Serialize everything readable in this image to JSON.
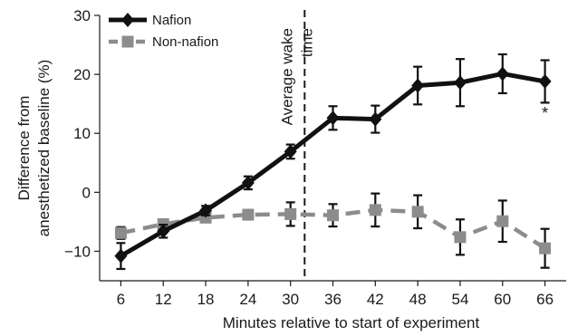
{
  "chart_data": {
    "type": "line",
    "xlabel": "Minutes relative to start of experiment",
    "ylabel_lines": [
      "Difference from",
      "anesthetized baseline (%)"
    ],
    "xlim": [
      3,
      69
    ],
    "ylim": [
      -15,
      30
    ],
    "x": [
      6,
      12,
      18,
      24,
      30,
      36,
      42,
      48,
      54,
      60,
      66
    ],
    "xticks": [
      6,
      12,
      18,
      24,
      30,
      36,
      42,
      48,
      54,
      60,
      66
    ],
    "xtick_labels": [
      "6",
      "12",
      "18",
      "24",
      "30",
      "36",
      "42",
      "48",
      "54",
      "60",
      "66"
    ],
    "yticks": [
      -10,
      0,
      10,
      20,
      30
    ],
    "ytick_labels": [
      "−10",
      "0",
      "10",
      "20",
      "30"
    ],
    "grid": false,
    "legend_position": "top-left",
    "series": [
      {
        "name": "Nafion",
        "color": "#111111",
        "marker": "diamond",
        "line_style": "solid",
        "values": [
          -10.8,
          -6.6,
          -3.1,
          1.6,
          6.9,
          12.6,
          12.4,
          18.1,
          18.6,
          20.1,
          18.8
        ],
        "error": [
          2.2,
          1.1,
          0.8,
          1.1,
          1.2,
          2.0,
          2.3,
          3.2,
          4.0,
          3.3,
          3.6
        ]
      },
      {
        "name": "Non-nafion",
        "color": "#8c8c8c",
        "marker": "square",
        "line_style": "dashed",
        "values": [
          -6.9,
          -5.4,
          -4.3,
          -3.8,
          -3.7,
          -3.9,
          -3.0,
          -3.3,
          -7.6,
          -4.9,
          -9.5
        ],
        "error": [
          1.0,
          0.8,
          0.7,
          0.8,
          2.0,
          1.9,
          2.8,
          2.8,
          3.0,
          3.5,
          3.3
        ]
      }
    ],
    "vline": {
      "x": 32,
      "label_lines": [
        "Average wake",
        "time"
      ]
    },
    "annotations": [
      {
        "x": 66,
        "y": 12.5,
        "text": "*"
      }
    ]
  }
}
